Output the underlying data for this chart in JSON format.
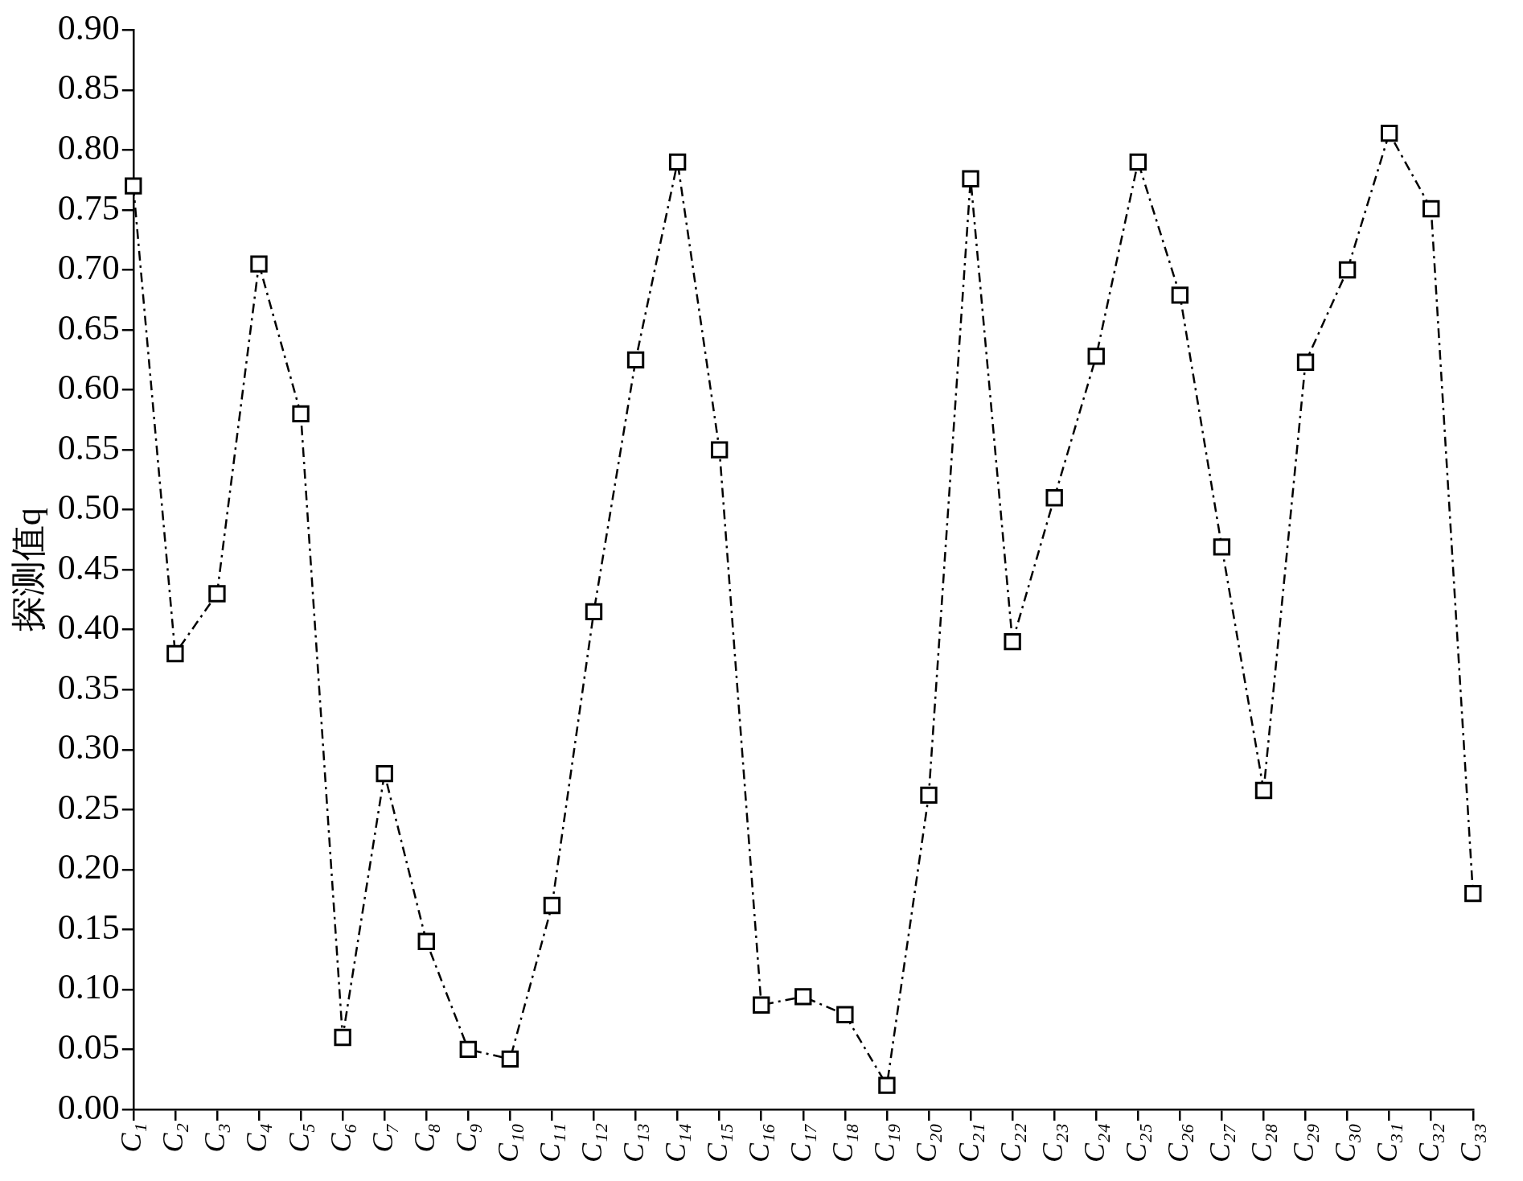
{
  "chart_data": {
    "type": "line",
    "ylabel": "探测值q",
    "categories": [
      "C₁",
      "C₂",
      "C₃",
      "C₄",
      "C₅",
      "C₆",
      "C₇",
      "C₈",
      "C₉",
      "C₁₀",
      "C₁₁",
      "C₁₂",
      "C₁₃",
      "C₁₄",
      "C₁₅",
      "C₁₆",
      "C₁₇",
      "C₁₈",
      "C₁₉",
      "C₂₀",
      "C₂₁",
      "C₂₂",
      "C₂₃",
      "C₂₄",
      "C₂₅",
      "C₂₆",
      "C₂₇",
      "C₂₈",
      "C₂₉",
      "C₃₀",
      "C₃₁",
      "C₃₂",
      "C₃₃"
    ],
    "series": [
      {
        "color": "#000000",
        "values": [
          0.77,
          0.38,
          0.43,
          0.705,
          0.58,
          0.06,
          0.28,
          0.14,
          0.05,
          0.042,
          0.17,
          0.415,
          0.625,
          0.79,
          0.55,
          0.087,
          0.094,
          0.079,
          0.02,
          0.262,
          0.776,
          0.39,
          0.51,
          0.628,
          0.79,
          0.679,
          0.469,
          0.266,
          0.623,
          0.7,
          0.814,
          0.751,
          0.18
        ]
      }
    ],
    "ylim": [
      0,
      0.9
    ],
    "yticks": [
      {
        "value": 0,
        "label": "0.00"
      },
      0.05,
      {
        "value": 0.1,
        "label": "0.10"
      },
      0.15,
      {
        "value": 0.2,
        "label": "0.20"
      },
      0.25,
      {
        "value": 0.3,
        "label": "0.30"
      },
      0.35,
      {
        "value": 0.4,
        "label": "0.40"
      },
      0.45,
      {
        "value": 0.5,
        "label": "0.50"
      },
      0.55,
      {
        "value": 0.6,
        "label": "0.60"
      },
      0.65,
      {
        "value": 0.7,
        "label": "0.70"
      },
      0.75,
      {
        "value": 0.8,
        "label": "0.80"
      },
      0.85,
      {
        "value": 0.9,
        "label": "0.90"
      }
    ],
    "marker": "square",
    "line_style": "dashed",
    "grid": false,
    "legend": false
  }
}
